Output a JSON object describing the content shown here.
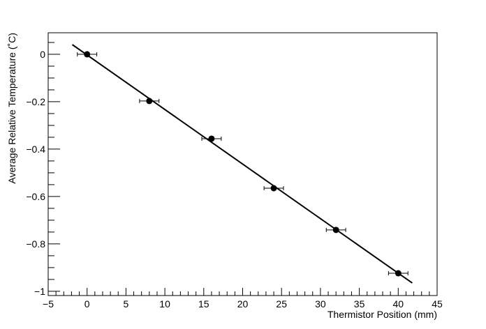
{
  "chart_data": {
    "type": "scatter",
    "title": "",
    "xlabel": "Thermistor Position (mm)",
    "ylabel": "Average Relative Temperature (˚C)",
    "xlim": [
      -5,
      45
    ],
    "ylim": [
      -1.018,
      0.091
    ],
    "xticks": [
      -5,
      0,
      5,
      10,
      15,
      20,
      25,
      30,
      35,
      40,
      45
    ],
    "yticks": [
      0,
      -0.2,
      -0.4,
      -0.6,
      -0.8,
      -1
    ],
    "xtick_labels": [
      "−5",
      "0",
      "5",
      "10",
      "15",
      "20",
      "25",
      "30",
      "35",
      "40",
      "45"
    ],
    "ytick_labels": [
      "0",
      "−0.2",
      "−0.4",
      "−0.6",
      "−0.8",
      "−1"
    ],
    "grid": false,
    "points": [
      {
        "x": 0,
        "y": 0,
        "xerr": 1.25
      },
      {
        "x": 8,
        "y": -0.197,
        "xerr": 1.25
      },
      {
        "x": 16,
        "y": -0.356,
        "xerr": 1.25
      },
      {
        "x": 24,
        "y": -0.565,
        "xerr": 1.25
      },
      {
        "x": 32,
        "y": -0.741,
        "xerr": 1.25
      },
      {
        "x": 40,
        "y": -0.924,
        "xerr": 1.25
      }
    ],
    "fit_line": {
      "x": [
        -1.9,
        41.8
      ],
      "y": [
        0.041,
        -0.965
      ]
    },
    "marker_color": "#000000",
    "line_color": "#000000"
  }
}
